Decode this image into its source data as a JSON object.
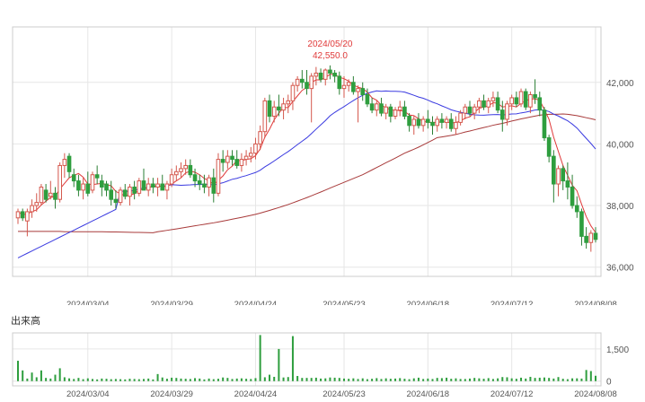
{
  "colors": {
    "up": "#d4574c",
    "down": "#2e9e3e",
    "ma_short": "#e03a3a",
    "ma_mid": "#3a3ae0",
    "ma_long": "#a83a3a",
    "volume": "#2e9e3e",
    "grid": "#e6e6e6",
    "frame": "#cccccc",
    "annotation": "#e03a3a",
    "text": "#555555"
  },
  "volume_label": "出来高",
  "chart_data": [
    {
      "type": "candlestick",
      "y_ticks": [
        42000,
        40000,
        38000,
        36000
      ],
      "y_tick_labels": [
        "42,000",
        "40,000",
        "38,000",
        "36,000"
      ],
      "ylim": [
        35700,
        43800
      ],
      "x_ticks": [
        {
          "index": 15,
          "label": "2024/03/04"
        },
        {
          "index": 33,
          "label": "2024/03/29"
        },
        {
          "index": 51,
          "label": "2024/04/24"
        },
        {
          "index": 70,
          "label": "2024/05/23"
        },
        {
          "index": 88,
          "label": "2024/06/18"
        },
        {
          "index": 106,
          "label": "2024/07/12"
        },
        {
          "index": 124,
          "label": "2024/08/08"
        }
      ],
      "x_count": 125,
      "annotation": {
        "date": "2024/05/20",
        "value": "42,550.0",
        "index": 67,
        "price": 42550
      },
      "ohlc": [
        [
          37600,
          37900,
          37400,
          37800
        ],
        [
          37800,
          37900,
          37500,
          37600
        ],
        [
          37500,
          37900,
          37000,
          37800
        ],
        [
          37800,
          38200,
          37600,
          38000
        ],
        [
          38000,
          38400,
          37800,
          38100
        ],
        [
          38100,
          38700,
          38000,
          38600
        ],
        [
          38500,
          38700,
          38100,
          38200
        ],
        [
          38300,
          38800,
          38200,
          38400
        ],
        [
          38400,
          38600,
          37900,
          38200
        ],
        [
          38200,
          39400,
          38100,
          39300
        ],
        [
          39300,
          39700,
          38900,
          39500
        ],
        [
          39600,
          39700,
          38900,
          39100
        ],
        [
          39000,
          39200,
          38600,
          38800
        ],
        [
          38800,
          39000,
          38300,
          38500
        ],
        [
          38500,
          38900,
          38200,
          38700
        ],
        [
          38700,
          39100,
          38300,
          38400
        ],
        [
          38500,
          39100,
          38400,
          39000
        ],
        [
          39000,
          39300,
          38700,
          38900
        ],
        [
          38800,
          39000,
          38300,
          38600
        ],
        [
          38700,
          38800,
          38300,
          38500
        ],
        [
          38500,
          38800,
          38000,
          38200
        ],
        [
          38200,
          38500,
          37900,
          38100
        ],
        [
          38100,
          38600,
          38000,
          38500
        ],
        [
          38500,
          38700,
          38200,
          38300
        ],
        [
          38300,
          38700,
          38000,
          38600
        ],
        [
          38600,
          38800,
          38200,
          38400
        ],
        [
          38400,
          38900,
          38300,
          38800
        ],
        [
          38800,
          39200,
          38500,
          38500
        ],
        [
          38500,
          38900,
          38300,
          38700
        ],
        [
          38700,
          38900,
          38400,
          38600
        ],
        [
          38600,
          38900,
          38300,
          38700
        ],
        [
          38700,
          39000,
          38500,
          38500
        ],
        [
          38500,
          38800,
          38200,
          38700
        ],
        [
          38700,
          39200,
          38600,
          39000
        ],
        [
          39000,
          39300,
          38800,
          39100
        ],
        [
          39100,
          39400,
          38900,
          39200
        ],
        [
          39200,
          39500,
          39000,
          39300
        ],
        [
          39300,
          39500,
          38900,
          39000
        ],
        [
          39000,
          39200,
          38600,
          38800
        ],
        [
          38800,
          39000,
          38500,
          38700
        ],
        [
          38700,
          39000,
          38400,
          38600
        ],
        [
          38600,
          39000,
          38300,
          38900
        ],
        [
          38900,
          39200,
          38100,
          38400
        ],
        [
          38400,
          39700,
          38300,
          39500
        ],
        [
          39500,
          39800,
          39100,
          39400
        ],
        [
          39400,
          39800,
          39200,
          39600
        ],
        [
          39600,
          39800,
          39300,
          39500
        ],
        [
          39500,
          39800,
          39200,
          39300
        ],
        [
          39300,
          39700,
          39100,
          39500
        ],
        [
          39500,
          39800,
          39300,
          39600
        ],
        [
          39600,
          39900,
          39400,
          39700
        ],
        [
          39700,
          40200,
          39500,
          40000
        ],
        [
          40000,
          40600,
          39800,
          40400
        ],
        [
          40400,
          41500,
          40200,
          41400
        ],
        [
          41400,
          41600,
          40700,
          40900
        ],
        [
          40900,
          41400,
          40700,
          41200
        ],
        [
          41200,
          41600,
          40900,
          41100
        ],
        [
          41100,
          41500,
          40800,
          41300
        ],
        [
          41300,
          41600,
          41000,
          41400
        ],
        [
          41400,
          42000,
          41100,
          41900
        ],
        [
          41900,
          42200,
          41700,
          42100
        ],
        [
          42100,
          42400,
          41800,
          42000
        ],
        [
          42000,
          42400,
          41600,
          41800
        ],
        [
          41800,
          42300,
          40700,
          42200
        ],
        [
          42200,
          42500,
          41900,
          42300
        ],
        [
          42300,
          42450,
          42000,
          42100
        ],
        [
          42100,
          42450,
          41900,
          42400
        ],
        [
          42400,
          42550,
          42100,
          42300
        ],
        [
          42300,
          42400,
          42000,
          42200
        ],
        [
          42200,
          42350,
          41600,
          41800
        ],
        [
          41800,
          42200,
          41500,
          41900
        ],
        [
          41900,
          42100,
          41700,
          42000
        ],
        [
          42000,
          42200,
          41600,
          41700
        ],
        [
          41700,
          41900,
          40700,
          41800
        ],
        [
          41800,
          42000,
          41400,
          41600
        ],
        [
          41600,
          41800,
          41200,
          41300
        ],
        [
          41300,
          41500,
          41000,
          41100
        ],
        [
          41100,
          41400,
          40900,
          41300
        ],
        [
          41300,
          41500,
          40900,
          41000
        ],
        [
          41000,
          41300,
          40800,
          41200
        ],
        [
          41200,
          41300,
          40700,
          40900
        ],
        [
          40900,
          41200,
          40800,
          41100
        ],
        [
          41100,
          41400,
          40900,
          41200
        ],
        [
          41200,
          41400,
          40800,
          40900
        ],
        [
          40900,
          41000,
          40400,
          40600
        ],
        [
          40600,
          40900,
          40300,
          40800
        ],
        [
          40800,
          41000,
          40500,
          40600
        ],
        [
          40600,
          40900,
          40400,
          40800
        ],
        [
          40800,
          41100,
          40500,
          40700
        ],
        [
          40700,
          40900,
          40300,
          40600
        ],
        [
          40600,
          40900,
          40400,
          40800
        ],
        [
          40800,
          41000,
          40500,
          40700
        ],
        [
          40700,
          40900,
          40500,
          40800
        ],
        [
          40800,
          41000,
          40400,
          40500
        ],
        [
          40500,
          40900,
          40300,
          40700
        ],
        [
          40700,
          41100,
          40600,
          41000
        ],
        [
          41000,
          41300,
          40800,
          41200
        ],
        [
          41200,
          41400,
          40900,
          41000
        ],
        [
          41000,
          41300,
          40800,
          41200
        ],
        [
          41200,
          41500,
          41000,
          41400
        ],
        [
          41400,
          41600,
          41100,
          41200
        ],
        [
          41200,
          41500,
          41000,
          41400
        ],
        [
          41400,
          41700,
          41200,
          41500
        ],
        [
          41500,
          41700,
          41000,
          41100
        ],
        [
          41100,
          41400,
          40400,
          40800
        ],
        [
          40800,
          41400,
          40600,
          41300
        ],
        [
          41300,
          41600,
          41100,
          41500
        ],
        [
          41500,
          41700,
          41200,
          41300
        ],
        [
          41300,
          41800,
          41200,
          41700
        ],
        [
          41700,
          41800,
          41100,
          41200
        ],
        [
          41200,
          41700,
          41000,
          41600
        ],
        [
          41600,
          42100,
          41300,
          41500
        ],
        [
          41500,
          41700,
          40900,
          41100
        ],
        [
          41100,
          41200,
          40100,
          40200
        ],
        [
          40200,
          40300,
          39400,
          39600
        ],
        [
          39600,
          39800,
          38100,
          38700
        ],
        [
          38700,
          39300,
          38300,
          39200
        ],
        [
          39200,
          39300,
          38500,
          38800
        ],
        [
          38800,
          39400,
          38200,
          38600
        ],
        [
          38600,
          39000,
          37900,
          38000
        ],
        [
          38000,
          38300,
          37600,
          37800
        ],
        [
          37800,
          37900,
          36700,
          37000
        ],
        [
          37000,
          37300,
          36600,
          36800
        ],
        [
          36800,
          37200,
          36500,
          37100
        ],
        [
          37100,
          37300,
          36800,
          36900
        ]
      ]
    },
    {
      "type": "bar",
      "y_ticks": [
        0,
        1500
      ],
      "y_tick_labels": [
        "0",
        "1,500"
      ],
      "ylim": [
        -220,
        2250
      ],
      "values": [
        950,
        500,
        120,
        400,
        180,
        500,
        150,
        120,
        300,
        600,
        180,
        130,
        100,
        150,
        90,
        130,
        100,
        80,
        120,
        110,
        90,
        100,
        90,
        80,
        110,
        100,
        90,
        100,
        120,
        80,
        330,
        170,
        110,
        160,
        150,
        120,
        110,
        100,
        140,
        120,
        80,
        120,
        90,
        110,
        170,
        150,
        100,
        120,
        130,
        110,
        100,
        140,
        2150,
        180,
        300,
        200,
        1500,
        170,
        190,
        2100,
        240,
        150,
        150,
        150,
        160,
        120,
        130,
        170,
        160,
        150,
        120,
        110,
        130,
        100,
        130,
        90,
        110,
        140,
        100,
        130,
        110,
        120,
        140,
        110,
        90,
        130,
        160,
        100,
        120,
        100,
        150,
        140,
        160,
        110,
        130,
        100,
        100,
        120,
        150,
        130,
        110,
        140,
        100,
        130,
        190,
        180,
        130,
        110,
        160,
        120,
        200,
        150,
        160,
        170,
        150,
        120,
        190,
        110,
        90,
        130,
        130,
        120,
        520,
        470,
        250
      ]
    }
  ]
}
